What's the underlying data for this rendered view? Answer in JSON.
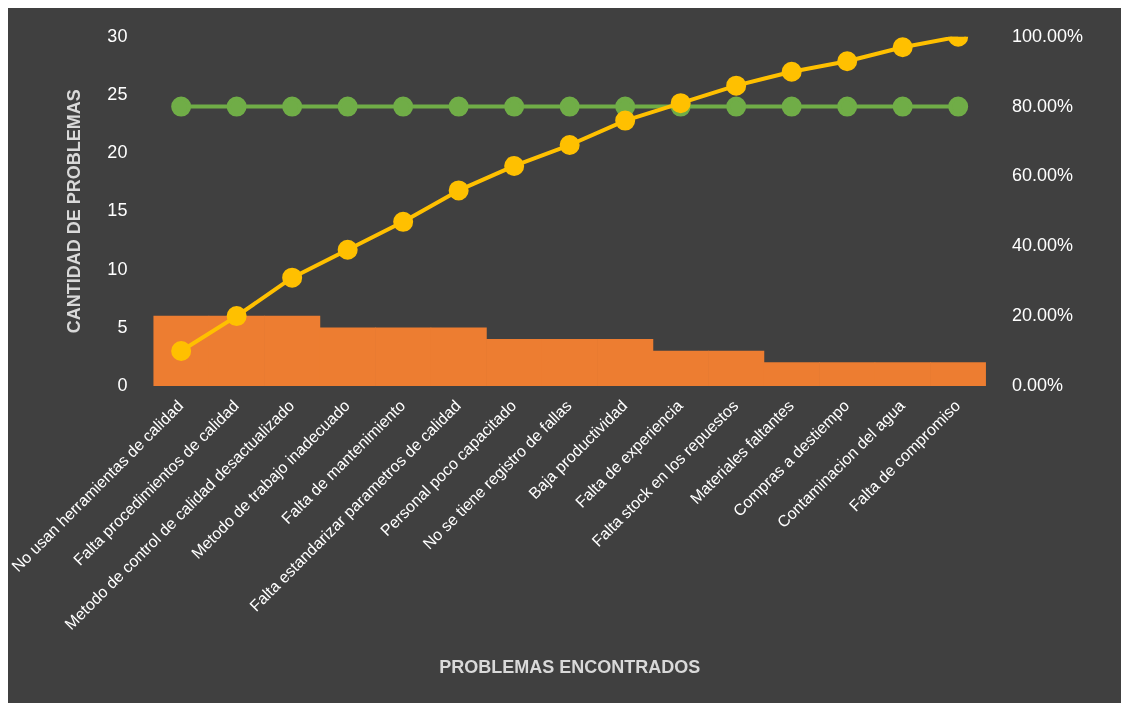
{
  "chart_data": {
    "type": "bar",
    "xlabel": "PROBLEMAS ENCONTRADOS",
    "ylabel": "CANTIDAD DE PROBLEMAS",
    "categories": [
      "No usan herramientas de calidad",
      "Falta procedimientos de calidad",
      "Metodo de control de calidad desactualizado",
      "Metodo de trabajo inadecuado",
      "Falta de mantenimiento",
      "Falta estandarizar parametros de calidad",
      "Personal poco capacitado",
      "No se tiene registro de fallas",
      "Baja productividad",
      "Falta de experiencia",
      "Falta stock en los repuestos",
      "Materiales faltantes",
      "Compras a destiempo",
      "Contaminacion del agua",
      "Falta de compromiso"
    ],
    "series": [
      {
        "color": "#ed7d31",
        "values": [
          6,
          6,
          6,
          5,
          5,
          5,
          4,
          4,
          4,
          3,
          3,
          2,
          2,
          2,
          2
        ]
      },
      {
        "type": "line",
        "axis": "y2",
        "color": "#ffc000",
        "values": [
          10,
          20,
          31,
          39,
          47,
          56,
          63,
          69,
          76,
          81,
          86,
          90,
          93,
          97,
          100
        ]
      },
      {
        "type": "line",
        "axis": "y2",
        "color": "#70ad47",
        "values": [
          80,
          80,
          80,
          80,
          80,
          80,
          80,
          80,
          80,
          80,
          80,
          80,
          80,
          80,
          80
        ]
      }
    ],
    "ylim": [
      0,
      30
    ],
    "yticks": [
      0,
      5,
      10,
      15,
      20,
      25,
      30
    ],
    "y2lim": [
      0,
      100
    ],
    "y2ticks": [
      {
        "value": 0,
        "label": "0.00%"
      },
      {
        "value": 20,
        "label": "20.00%"
      },
      {
        "value": 40,
        "label": "40.00%"
      },
      {
        "value": 60,
        "label": "60.00%"
      },
      {
        "value": 80,
        "label": "80.00%"
      },
      {
        "value": 100,
        "label": "100.00%"
      }
    ],
    "grid": false,
    "legend": false,
    "marker": "circle",
    "line_style": "solid"
  }
}
